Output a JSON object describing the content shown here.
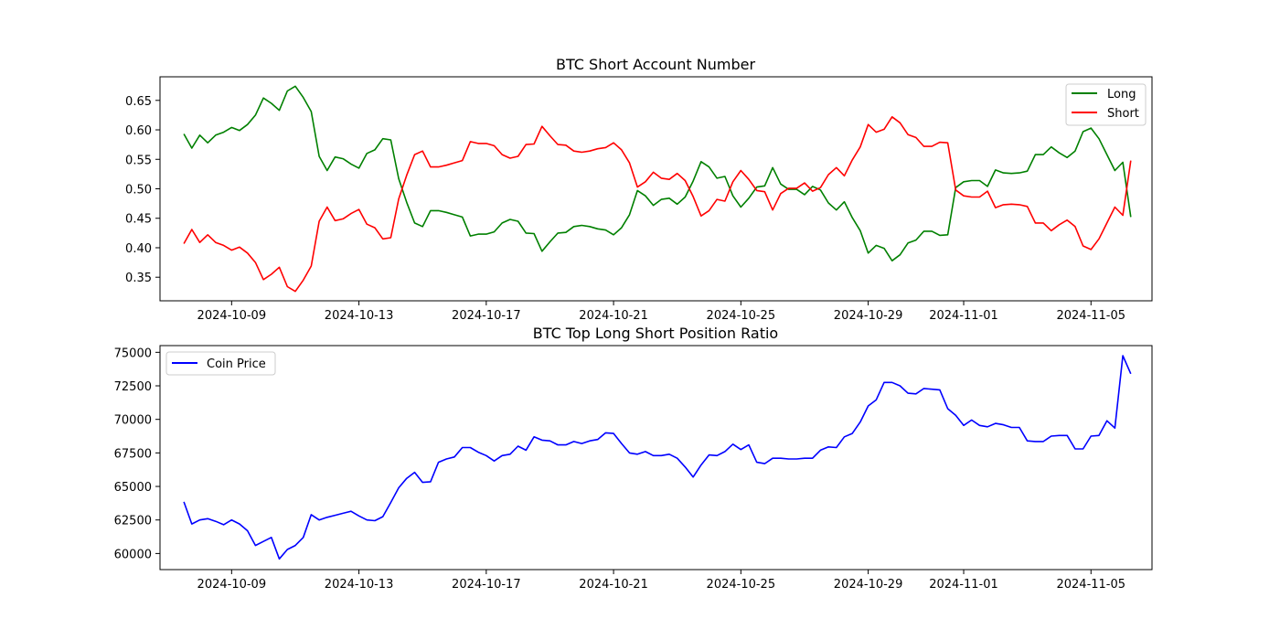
{
  "chart_data": [
    {
      "type": "line",
      "title": "BTC Short Account Number",
      "xlabel": "",
      "ylabel": "",
      "x_start": "2024-10-07T12:00",
      "x_step_hours": 6,
      "xlim": [
        "2024-10-06T18:00",
        "2024-11-06T22:00"
      ],
      "ylim": [
        0.31,
        0.69
      ],
      "x_ticks": [
        "2024-10-09",
        "2024-10-13",
        "2024-10-17",
        "2024-10-21",
        "2024-10-25",
        "2024-10-29",
        "2024-11-01",
        "2024-11-05"
      ],
      "y_ticks": [
        "0.35",
        "0.40",
        "0.45",
        "0.50",
        "0.55",
        "0.60",
        "0.65"
      ],
      "y_tick_values": [
        0.35,
        0.4,
        0.45,
        0.5,
        0.55,
        0.6,
        0.65
      ],
      "legend": "top-right",
      "grid": false,
      "series": [
        {
          "name": "Long",
          "color": "#008000",
          "values": [
            0.593,
            0.569,
            0.591,
            0.578,
            0.591,
            0.596,
            0.604,
            0.599,
            0.609,
            0.625,
            0.654,
            0.645,
            0.633,
            0.666,
            0.674,
            0.655,
            0.631,
            0.555,
            0.531,
            0.554,
            0.551,
            0.542,
            0.535,
            0.56,
            0.566,
            0.585,
            0.583,
            0.517,
            0.477,
            0.442,
            0.436,
            0.463,
            0.463,
            0.46,
            0.456,
            0.452,
            0.42,
            0.423,
            0.423,
            0.427,
            0.442,
            0.448,
            0.445,
            0.425,
            0.424,
            0.394,
            0.41,
            0.425,
            0.426,
            0.436,
            0.438,
            0.436,
            0.432,
            0.43,
            0.422,
            0.434,
            0.456,
            0.497,
            0.488,
            0.472,
            0.482,
            0.484,
            0.474,
            0.486,
            0.513,
            0.546,
            0.537,
            0.518,
            0.521,
            0.488,
            0.469,
            0.484,
            0.503,
            0.505,
            0.536,
            0.508,
            0.499,
            0.499,
            0.49,
            0.504,
            0.498,
            0.476,
            0.464,
            0.478,
            0.451,
            0.429,
            0.391,
            0.404,
            0.399,
            0.378,
            0.388,
            0.408,
            0.413,
            0.428,
            0.428,
            0.421,
            0.422,
            0.502,
            0.512,
            0.514,
            0.514,
            0.504,
            0.532,
            0.527,
            0.526,
            0.527,
            0.53,
            0.558,
            0.558,
            0.571,
            0.561,
            0.553,
            0.564,
            0.597,
            0.603,
            0.585,
            0.558,
            0.531,
            0.545,
            0.452
          ]
        },
        {
          "name": "Short",
          "color": "#ff0000",
          "values": [
            0.407,
            0.431,
            0.409,
            0.422,
            0.409,
            0.404,
            0.396,
            0.401,
            0.391,
            0.375,
            0.346,
            0.355,
            0.367,
            0.334,
            0.326,
            0.345,
            0.369,
            0.445,
            0.469,
            0.446,
            0.449,
            0.458,
            0.465,
            0.44,
            0.434,
            0.415,
            0.417,
            0.483,
            0.523,
            0.558,
            0.564,
            0.537,
            0.537,
            0.54,
            0.544,
            0.548,
            0.58,
            0.577,
            0.577,
            0.573,
            0.558,
            0.552,
            0.555,
            0.575,
            0.576,
            0.606,
            0.59,
            0.575,
            0.574,
            0.564,
            0.562,
            0.564,
            0.568,
            0.57,
            0.578,
            0.566,
            0.544,
            0.503,
            0.512,
            0.528,
            0.518,
            0.516,
            0.526,
            0.514,
            0.487,
            0.454,
            0.463,
            0.482,
            0.479,
            0.512,
            0.531,
            0.516,
            0.497,
            0.495,
            0.464,
            0.492,
            0.501,
            0.501,
            0.51,
            0.496,
            0.502,
            0.524,
            0.536,
            0.522,
            0.549,
            0.571,
            0.609,
            0.596,
            0.601,
            0.622,
            0.612,
            0.592,
            0.587,
            0.572,
            0.572,
            0.579,
            0.578,
            0.498,
            0.488,
            0.486,
            0.486,
            0.496,
            0.468,
            0.473,
            0.474,
            0.473,
            0.47,
            0.442,
            0.442,
            0.429,
            0.439,
            0.447,
            0.436,
            0.403,
            0.397,
            0.415,
            0.442,
            0.469,
            0.455,
            0.548
          ]
        }
      ]
    },
    {
      "type": "line",
      "title": "BTC Top Long Short Position Ratio",
      "xlabel": "",
      "ylabel": "",
      "x_start": "2024-10-07T12:00",
      "x_step_hours": 6,
      "xlim": [
        "2024-10-06T18:00",
        "2024-11-06T22:00"
      ],
      "ylim": [
        58800,
        75500
      ],
      "x_ticks": [
        "2024-10-09",
        "2024-10-13",
        "2024-10-17",
        "2024-10-21",
        "2024-10-25",
        "2024-10-29",
        "2024-11-01",
        "2024-11-05"
      ],
      "y_ticks": [
        "60000",
        "62500",
        "65000",
        "67500",
        "70000",
        "72500",
        "75000"
      ],
      "y_tick_values": [
        60000,
        62500,
        65000,
        67500,
        70000,
        72500,
        75000
      ],
      "legend": "top-left",
      "grid": false,
      "series": [
        {
          "name": "Coin Price",
          "color": "#0000ff",
          "values": [
            63850,
            62200,
            62500,
            62600,
            62400,
            62150,
            62500,
            62200,
            61700,
            60600,
            60900,
            61200,
            59600,
            60300,
            60600,
            61200,
            62900,
            62500,
            62700,
            62850,
            63000,
            63150,
            62800,
            62500,
            62450,
            62750,
            63800,
            64900,
            65600,
            66050,
            65300,
            65350,
            66800,
            67050,
            67200,
            67900,
            67900,
            67550,
            67300,
            66900,
            67300,
            67400,
            68000,
            67700,
            68700,
            68450,
            68400,
            68100,
            68100,
            68350,
            68200,
            68400,
            68500,
            69000,
            68950,
            68200,
            67500,
            67400,
            67600,
            67300,
            67300,
            67400,
            67100,
            66450,
            65700,
            66600,
            67350,
            67300,
            67600,
            68150,
            67750,
            68100,
            66800,
            66700,
            67100,
            67100,
            67050,
            67050,
            67100,
            67100,
            67700,
            67950,
            67900,
            68700,
            68950,
            69800,
            71000,
            71450,
            72750,
            72750,
            72500,
            71950,
            71900,
            72300,
            72250,
            72200,
            70800,
            70300,
            69550,
            69950,
            69550,
            69450,
            69700,
            69600,
            69400,
            69400,
            68400,
            68350,
            68350,
            68750,
            68800,
            68800,
            67800,
            67800,
            68750,
            68800,
            69900,
            69350,
            74750,
            73400
          ]
        }
      ]
    }
  ]
}
